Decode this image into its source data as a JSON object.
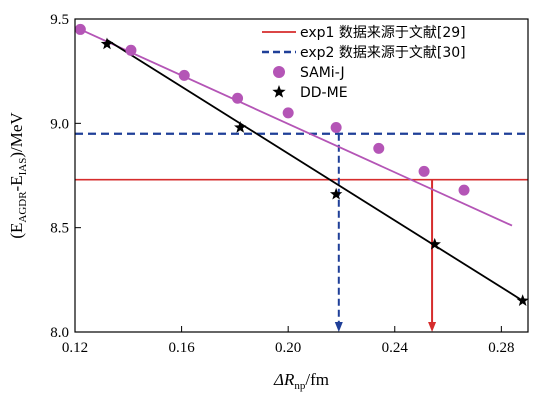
{
  "chart_data": {
    "type": "scatter",
    "xlim": [
      0.12,
      0.29
    ],
    "ylim": [
      8.0,
      9.5
    ],
    "xticks": [
      "0.12",
      "0.16",
      "0.20",
      "0.24",
      "0.28"
    ],
    "xtick_values": [
      0.12,
      0.16,
      0.2,
      0.24,
      0.28
    ],
    "yticks": [
      "8.0",
      "8.5",
      "9.0",
      "9.5"
    ],
    "ytick_values": [
      8.0,
      8.5,
      9.0,
      9.5
    ],
    "xlabel": {
      "prefix": "ΔR",
      "sub": "np",
      "suffix": "/fm"
    },
    "ylabel": {
      "open": "(E",
      "sub1": "AGDR",
      "mid": "-E",
      "sub2": "IAS",
      "close": ")/MeV"
    },
    "series": [
      {
        "name": "SAMi-J",
        "marker": "circle",
        "color": "#b455b6",
        "x": [
          0.122,
          0.141,
          0.161,
          0.181,
          0.2,
          0.218,
          0.234,
          0.251,
          0.266
        ],
        "y": [
          9.45,
          9.35,
          9.23,
          9.12,
          9.05,
          8.98,
          8.88,
          8.77,
          8.68
        ],
        "fit": {
          "x": [
            0.122,
            0.284
          ],
          "y": [
            9.45,
            8.51
          ],
          "color": "#b455b6"
        }
      },
      {
        "name": "DD-ME",
        "marker": "star",
        "color": "#000000",
        "x": [
          0.132,
          0.182,
          0.218,
          0.255,
          0.288
        ],
        "y": [
          9.38,
          8.98,
          8.66,
          8.42,
          8.15
        ],
        "fit": {
          "x": [
            0.132,
            0.288
          ],
          "y": [
            9.4,
            8.15
          ],
          "color": "#000000"
        }
      }
    ],
    "reference_lines": [
      {
        "name": "exp1 数据来源于文献[29]",
        "style": "solid",
        "color": "#d62c2c",
        "y": 8.73,
        "x_cross": 0.254
      },
      {
        "name": "exp2 数据来源于文献[30]",
        "style": "dashed",
        "color": "#1f3f98",
        "y": 8.95,
        "x_cross": 0.219
      }
    ],
    "legend": {
      "placement": "top-right",
      "entries": [
        {
          "label": "exp1 数据来源于文献[29]",
          "kind": "solid-line",
          "color": "#d62c2c"
        },
        {
          "label": "exp2 数据来源于文献[30]",
          "kind": "dashed-line",
          "color": "#1f3f98"
        },
        {
          "label": "SAMi-J",
          "kind": "circle",
          "color": "#b455b6"
        },
        {
          "label": "DD-ME",
          "kind": "star",
          "color": "#000000"
        }
      ]
    }
  }
}
